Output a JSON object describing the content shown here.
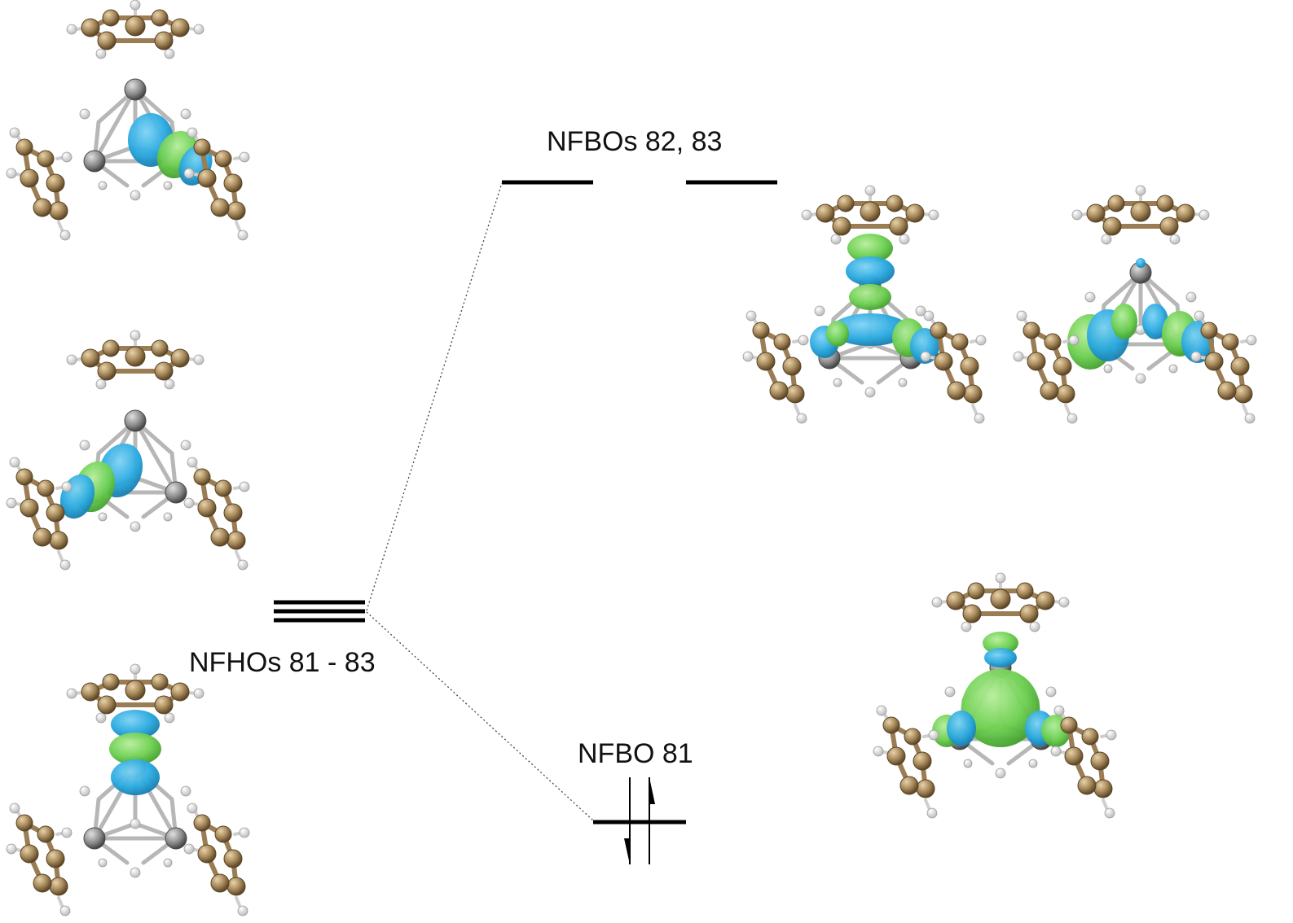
{
  "labels": {
    "nfhos": "NFHOs 81 - 83",
    "nfbos_upper": "NFBOs 82, 83",
    "nfbo_lower": "NFBO 81"
  },
  "colors": {
    "orbital_positive": "#29a9e0",
    "orbital_negative": "#6ccf50",
    "carbon": "#a88a5c",
    "metal": "#8c8c8c",
    "hydrogen": "#f2f2f2",
    "level_line": "#000000"
  },
  "electrons": {
    "nfbo_81_occupancy": 2,
    "spin_arrows": [
      "up",
      "down"
    ]
  }
}
